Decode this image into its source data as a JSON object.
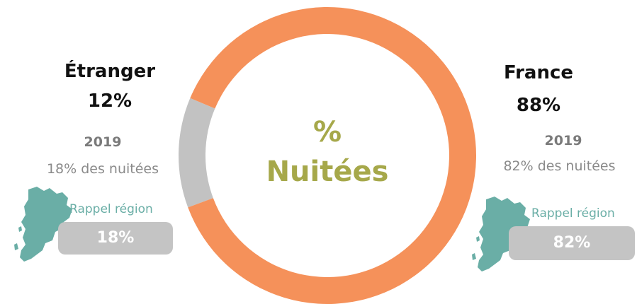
{
  "chart_data": {
    "type": "pie",
    "variant": "donut",
    "categories": [
      "France",
      "Étranger"
    ],
    "values": [
      88,
      12
    ],
    "colors": [
      "#f5915a",
      "#c2c2c2"
    ],
    "center_label": [
      "%",
      "Nuitées"
    ],
    "center_label_color": "#a6a84a"
  },
  "etranger": {
    "label": "Étranger",
    "pct": "12%",
    "year": "2019",
    "prev": "18% des nuitées",
    "rappel_label": "Rappel région",
    "rappel_value": "18%"
  },
  "france": {
    "label": "France",
    "pct": "88%",
    "year": "2019",
    "prev": "82% des nuitées",
    "rappel_label": "Rappel région",
    "rappel_value": "82%"
  },
  "colors": {
    "map": "#6aaea6",
    "pill": "#c4c4c4"
  }
}
